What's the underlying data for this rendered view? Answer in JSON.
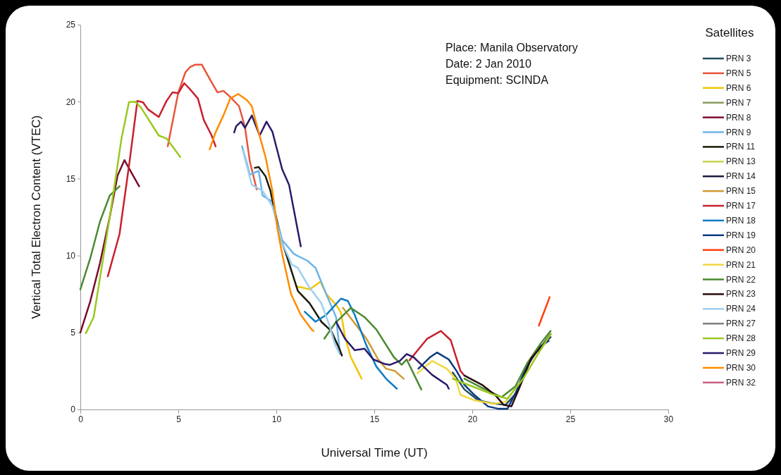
{
  "chart_data": {
    "type": "line",
    "xlabel": "Universal Time (UT)",
    "ylabel": "Vertical Total Electron Content (VTEC)",
    "legend_title": "Satellites",
    "legend": "right",
    "annotations": [
      "Place: Manila Observatory",
      "Date: 2 Jan 2010",
      "Equipment: SCINDA"
    ],
    "xlim": [
      0,
      30
    ],
    "xticks": [
      0,
      5,
      10,
      15,
      20,
      25,
      30
    ],
    "ylim": [
      0,
      25
    ],
    "yticks": [
      0,
      5,
      10,
      15,
      20,
      25
    ],
    "line_style": "solid",
    "marker": "none",
    "series": [
      {
        "name": "PRN 3",
        "color": "#1f4e5f",
        "x": [
          19.0,
          19.6,
          20.3,
          21.0,
          21.7,
          22.2,
          22.7,
          23.3,
          24.0
        ],
        "values": [
          2.4,
          1.3,
          0.6,
          0.4,
          0.3,
          1.0,
          2.6,
          3.8,
          4.7
        ]
      },
      {
        "name": "PRN 5",
        "color": "#e8553a",
        "x": [
          4.46,
          5.0,
          5.36,
          5.6,
          5.85,
          6.2,
          6.7,
          7.0,
          7.3,
          7.65,
          8.1,
          8.4,
          8.65,
          9.0
        ],
        "values": [
          17.1,
          20.6,
          21.9,
          22.25,
          22.4,
          22.4,
          21.25,
          20.6,
          20.7,
          20.3,
          19.7,
          18.35,
          16.1,
          14.3
        ]
      },
      {
        "name": "PRN 6",
        "color": "#f2c500",
        "x": [
          11.0,
          11.4,
          11.7,
          12.25,
          12.55,
          13.05,
          13.3,
          13.5,
          13.8,
          14.0,
          14.35
        ],
        "values": [
          8.0,
          7.9,
          7.8,
          8.3,
          7.5,
          6.8,
          6.3,
          4.75,
          3.4,
          2.9,
          2.0
        ]
      },
      {
        "name": "PRN 7",
        "color": "#8a9a5b"
      },
      {
        "name": "PRN 8",
        "color": "#7a0c2e",
        "x": [
          0,
          0.5,
          1.0,
          1.5,
          1.9,
          2.25,
          2.6,
          3.0
        ],
        "values": [
          5.0,
          7.0,
          9.5,
          12.5,
          15.2,
          16.2,
          15.4,
          14.5
        ]
      },
      {
        "name": "PRN 9",
        "color": "#6cb4e8",
        "x": [
          8.25,
          8.5,
          8.65,
          9.1,
          9.3,
          9.8,
          10.3,
          10.9,
          11.6,
          12.0,
          12.55,
          13.05,
          13.25
        ],
        "values": [
          17.1,
          16.0,
          15.25,
          15.5,
          13.9,
          13.5,
          11.0,
          10.1,
          9.65,
          9.2,
          7.5,
          6.0,
          3.6
        ]
      },
      {
        "name": "PRN 11",
        "color": "#1a1a0a",
        "x": [
          8.9,
          9.1,
          9.45,
          9.7,
          10.2,
          10.5,
          10.8,
          11.1,
          11.7,
          12.3,
          12.8,
          13.2,
          13.35
        ],
        "values": [
          15.7,
          15.75,
          15.15,
          14.2,
          11.2,
          10.1,
          8.9,
          7.7,
          6.9,
          5.7,
          5.1,
          4.0,
          3.5
        ]
      },
      {
        "name": "PRN 13",
        "color": "#c8d44a"
      },
      {
        "name": "PRN 14",
        "color": "#1a1a40"
      },
      {
        "name": "PRN 15",
        "color": "#d09a30",
        "x": [
          13.4,
          14.0,
          14.6,
          15.2,
          15.6,
          16.05,
          16.5
        ],
        "values": [
          6.6,
          5.6,
          4.6,
          3.25,
          2.65,
          2.5,
          2.0
        ]
      },
      {
        "name": "PRN 17",
        "color": "#c8202e",
        "x": [
          1.4,
          2.0,
          2.5,
          2.91,
          3.2,
          3.45,
          4.0,
          4.4,
          4.7,
          5.0,
          5.3,
          5.6,
          6.0,
          6.3,
          6.7,
          6.9,
          12.0,
          16.8,
          17.7,
          18.4,
          18.9,
          19.4,
          19.6
        ],
        "values": [
          8.65,
          11.4,
          16.0,
          20.05,
          19.95,
          19.5,
          19.0,
          20.05,
          20.6,
          20.55,
          21.2,
          20.8,
          20.2,
          18.8,
          17.8,
          17.1,
          null,
          3.2,
          4.6,
          5.1,
          4.5,
          2.5,
          2.2
        ]
      },
      {
        "name": "PRN 18",
        "color": "#0d7cc4",
        "x": [
          11.45,
          12.0,
          12.55,
          13.3,
          13.65,
          14.0,
          14.6,
          15.1,
          15.6,
          16.15
        ],
        "values": [
          6.35,
          5.7,
          6.15,
          7.2,
          7.05,
          6.15,
          4.15,
          2.8,
          2.0,
          1.35
        ]
      },
      {
        "name": "PRN 19",
        "color": "#0a3a80",
        "x": [
          17.25,
          17.85,
          18.2,
          18.8,
          19.2,
          19.6,
          20.1,
          20.8,
          21.3,
          21.8,
          22.3,
          22.8,
          23.35,
          23.9
        ],
        "values": [
          2.65,
          3.4,
          3.7,
          3.25,
          2.5,
          1.6,
          0.95,
          0.2,
          0.05,
          0.05,
          1.3,
          2.9,
          4.0,
          4.45
        ]
      },
      {
        "name": "PRN 20",
        "color": "#ff4010",
        "x": [
          23.4,
          23.95
        ],
        "values": [
          5.45,
          7.3
        ]
      },
      {
        "name": "PRN 21",
        "color": "#f0d840",
        "x": [
          17.2,
          17.95,
          18.7,
          19.15,
          19.4,
          20.1,
          21.1,
          21.7,
          22.15
        ],
        "values": [
          2.35,
          3.15,
          2.65,
          2.0,
          0.95,
          0.6,
          0.37,
          0.5,
          1.3
        ]
      },
      {
        "name": "PRN 22",
        "color": "#4a8a30",
        "x": [
          0,
          0.5,
          1.0,
          1.5,
          2.0,
          7.0,
          12.45,
          13.0,
          13.8,
          14.5,
          15.1,
          16.0,
          16.4,
          16.65,
          17.4,
          18.5,
          19.6,
          20.5,
          21.5,
          22.2,
          22.8,
          23.5,
          24.0
        ],
        "values": [
          7.8,
          9.8,
          12.2,
          13.9,
          14.5,
          null,
          4.6,
          5.6,
          6.6,
          6.0,
          5.2,
          3.4,
          2.9,
          3.25,
          1.3,
          null,
          2.0,
          1.4,
          0.8,
          1.5,
          3.0,
          4.3,
          5.1
        ]
      },
      {
        "name": "PRN 23",
        "color": "#2a0a10",
        "x": [
          19.6,
          20.5,
          21.2,
          21.6,
          22.0,
          22.4,
          23.0,
          23.6,
          24.0
        ],
        "values": [
          2.2,
          1.6,
          0.9,
          0.3,
          0.2,
          1.4,
          3.3,
          4.2,
          4.9
        ]
      },
      {
        "name": "PRN 24",
        "color": "#9cd0f0",
        "x": [
          8.3,
          8.75,
          9.3,
          9.8,
          10.3,
          10.8,
          11.1,
          11.65,
          12.3,
          12.7,
          13.0,
          13.2
        ],
        "values": [
          16.8,
          14.6,
          14.2,
          13.2,
          10.8,
          9.4,
          9.2,
          8.0,
          6.9,
          5.5,
          4.2,
          3.7
        ]
      },
      {
        "name": "PRN 27",
        "color": "#808080"
      },
      {
        "name": "PRN 28",
        "color": "#9ac820",
        "x": [
          0.28,
          0.68,
          1.55,
          2.1,
          2.48,
          2.8,
          3.1,
          4.0,
          4.4,
          5.1,
          12.0,
          19.0,
          20.0,
          21.0,
          21.8,
          22.6,
          23.3,
          24.0
        ],
        "values": [
          4.95,
          6.0,
          12.9,
          17.6,
          19.96,
          20.0,
          19.6,
          17.8,
          17.6,
          16.4,
          null,
          2.0,
          1.5,
          1.0,
          0.7,
          2.0,
          3.5,
          4.9
        ]
      },
      {
        "name": "PRN 29",
        "color": "#2a1a6a",
        "x": [
          7.85,
          7.95,
          8.2,
          8.4,
          8.75,
          9.15,
          9.5,
          9.8,
          10.3,
          10.65,
          11.25,
          12.0,
          13.05,
          13.5,
          14.0,
          14.5,
          14.95,
          15.55,
          15.8,
          16.3,
          16.65,
          17.0,
          17.5,
          17.95,
          18.7,
          18.8
        ],
        "values": [
          18.0,
          18.4,
          18.7,
          18.3,
          19.1,
          17.8,
          18.7,
          18.05,
          15.6,
          14.6,
          10.6,
          null,
          5.7,
          4.6,
          3.85,
          3.95,
          3.25,
          2.95,
          2.9,
          3.15,
          3.6,
          3.4,
          2.8,
          2.25,
          1.6,
          1.35
        ]
      },
      {
        "name": "PRN 30",
        "color": "#ff8c00",
        "x": [
          6.6,
          6.9,
          7.3,
          7.65,
          8.05,
          8.5,
          8.75,
          9.1,
          9.45,
          9.8,
          10.05,
          10.3,
          10.75,
          11.25,
          11.8,
          11.9
        ],
        "values": [
          16.9,
          18.0,
          19.1,
          20.2,
          20.5,
          20.1,
          19.7,
          18.0,
          16.4,
          14.2,
          11.8,
          10.1,
          7.5,
          6.15,
          5.2,
          5.1
        ]
      },
      {
        "name": "PRN 32",
        "color": "#c86080"
      }
    ]
  }
}
